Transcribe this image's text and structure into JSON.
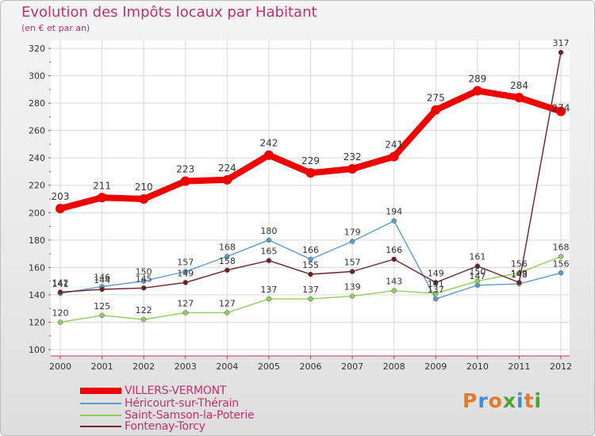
{
  "chart_data": {
    "type": "line",
    "title": "Evolution des Impôts locaux par Habitant",
    "subtitle": "(en € et par an)",
    "xlabel": "",
    "ylabel": "",
    "ylim": [
      100,
      320
    ],
    "yticks": [
      "100",
      "120",
      "140",
      "160",
      "180",
      "200",
      "220",
      "240",
      "260",
      "280",
      "300",
      "320"
    ],
    "categories": [
      "2000",
      "2001",
      "2002",
      "2003",
      "2004",
      "2005",
      "2006",
      "2007",
      "2008",
      "2009",
      "2010",
      "2011",
      "2012"
    ],
    "grid": true,
    "legend_position": "bottom-left",
    "series": [
      {
        "name": "VILLERS-VERMONT",
        "color": "#ee0000",
        "values": [
          203,
          211,
          210,
          223,
          224,
          242,
          229,
          232,
          241,
          275,
          289,
          284,
          274
        ]
      },
      {
        "name": "Héricourt-sur-Thérain",
        "color": "#5b9bd0",
        "values": [
          141,
          146,
          150,
          157,
          168,
          180,
          166,
          179,
          194,
          137,
          147,
          148,
          156
        ]
      },
      {
        "name": "Saint-Samson-la-Poterie",
        "color": "#90d05a",
        "values": [
          120,
          125,
          122,
          127,
          127,
          137,
          137,
          139,
          143,
          141,
          150,
          156,
          168
        ]
      },
      {
        "name": "Fontenay-Torcy",
        "color": "#6e2024",
        "values": [
          142,
          144,
          145,
          149,
          158,
          165,
          155,
          157,
          166,
          149,
          161,
          149,
          317
        ]
      }
    ]
  },
  "legend": {
    "items": [
      {
        "label": "VILLERS-VERMONT",
        "color": "#ee0000"
      },
      {
        "label": "Héricourt-sur-Thérain",
        "color": "#5b9bd0"
      },
      {
        "label": "Saint-Samson-la-Poterie",
        "color": "#90d05a"
      },
      {
        "label": "Fontenay-Torcy",
        "color": "#6e2024"
      }
    ]
  },
  "logo": {
    "text": "Proxiti",
    "letter_colors": [
      "#e8782a",
      "#3d8fd1",
      "#e8782a",
      "#4aa337",
      "#3d8fd1",
      "#e8782a",
      "#4aa337"
    ]
  }
}
